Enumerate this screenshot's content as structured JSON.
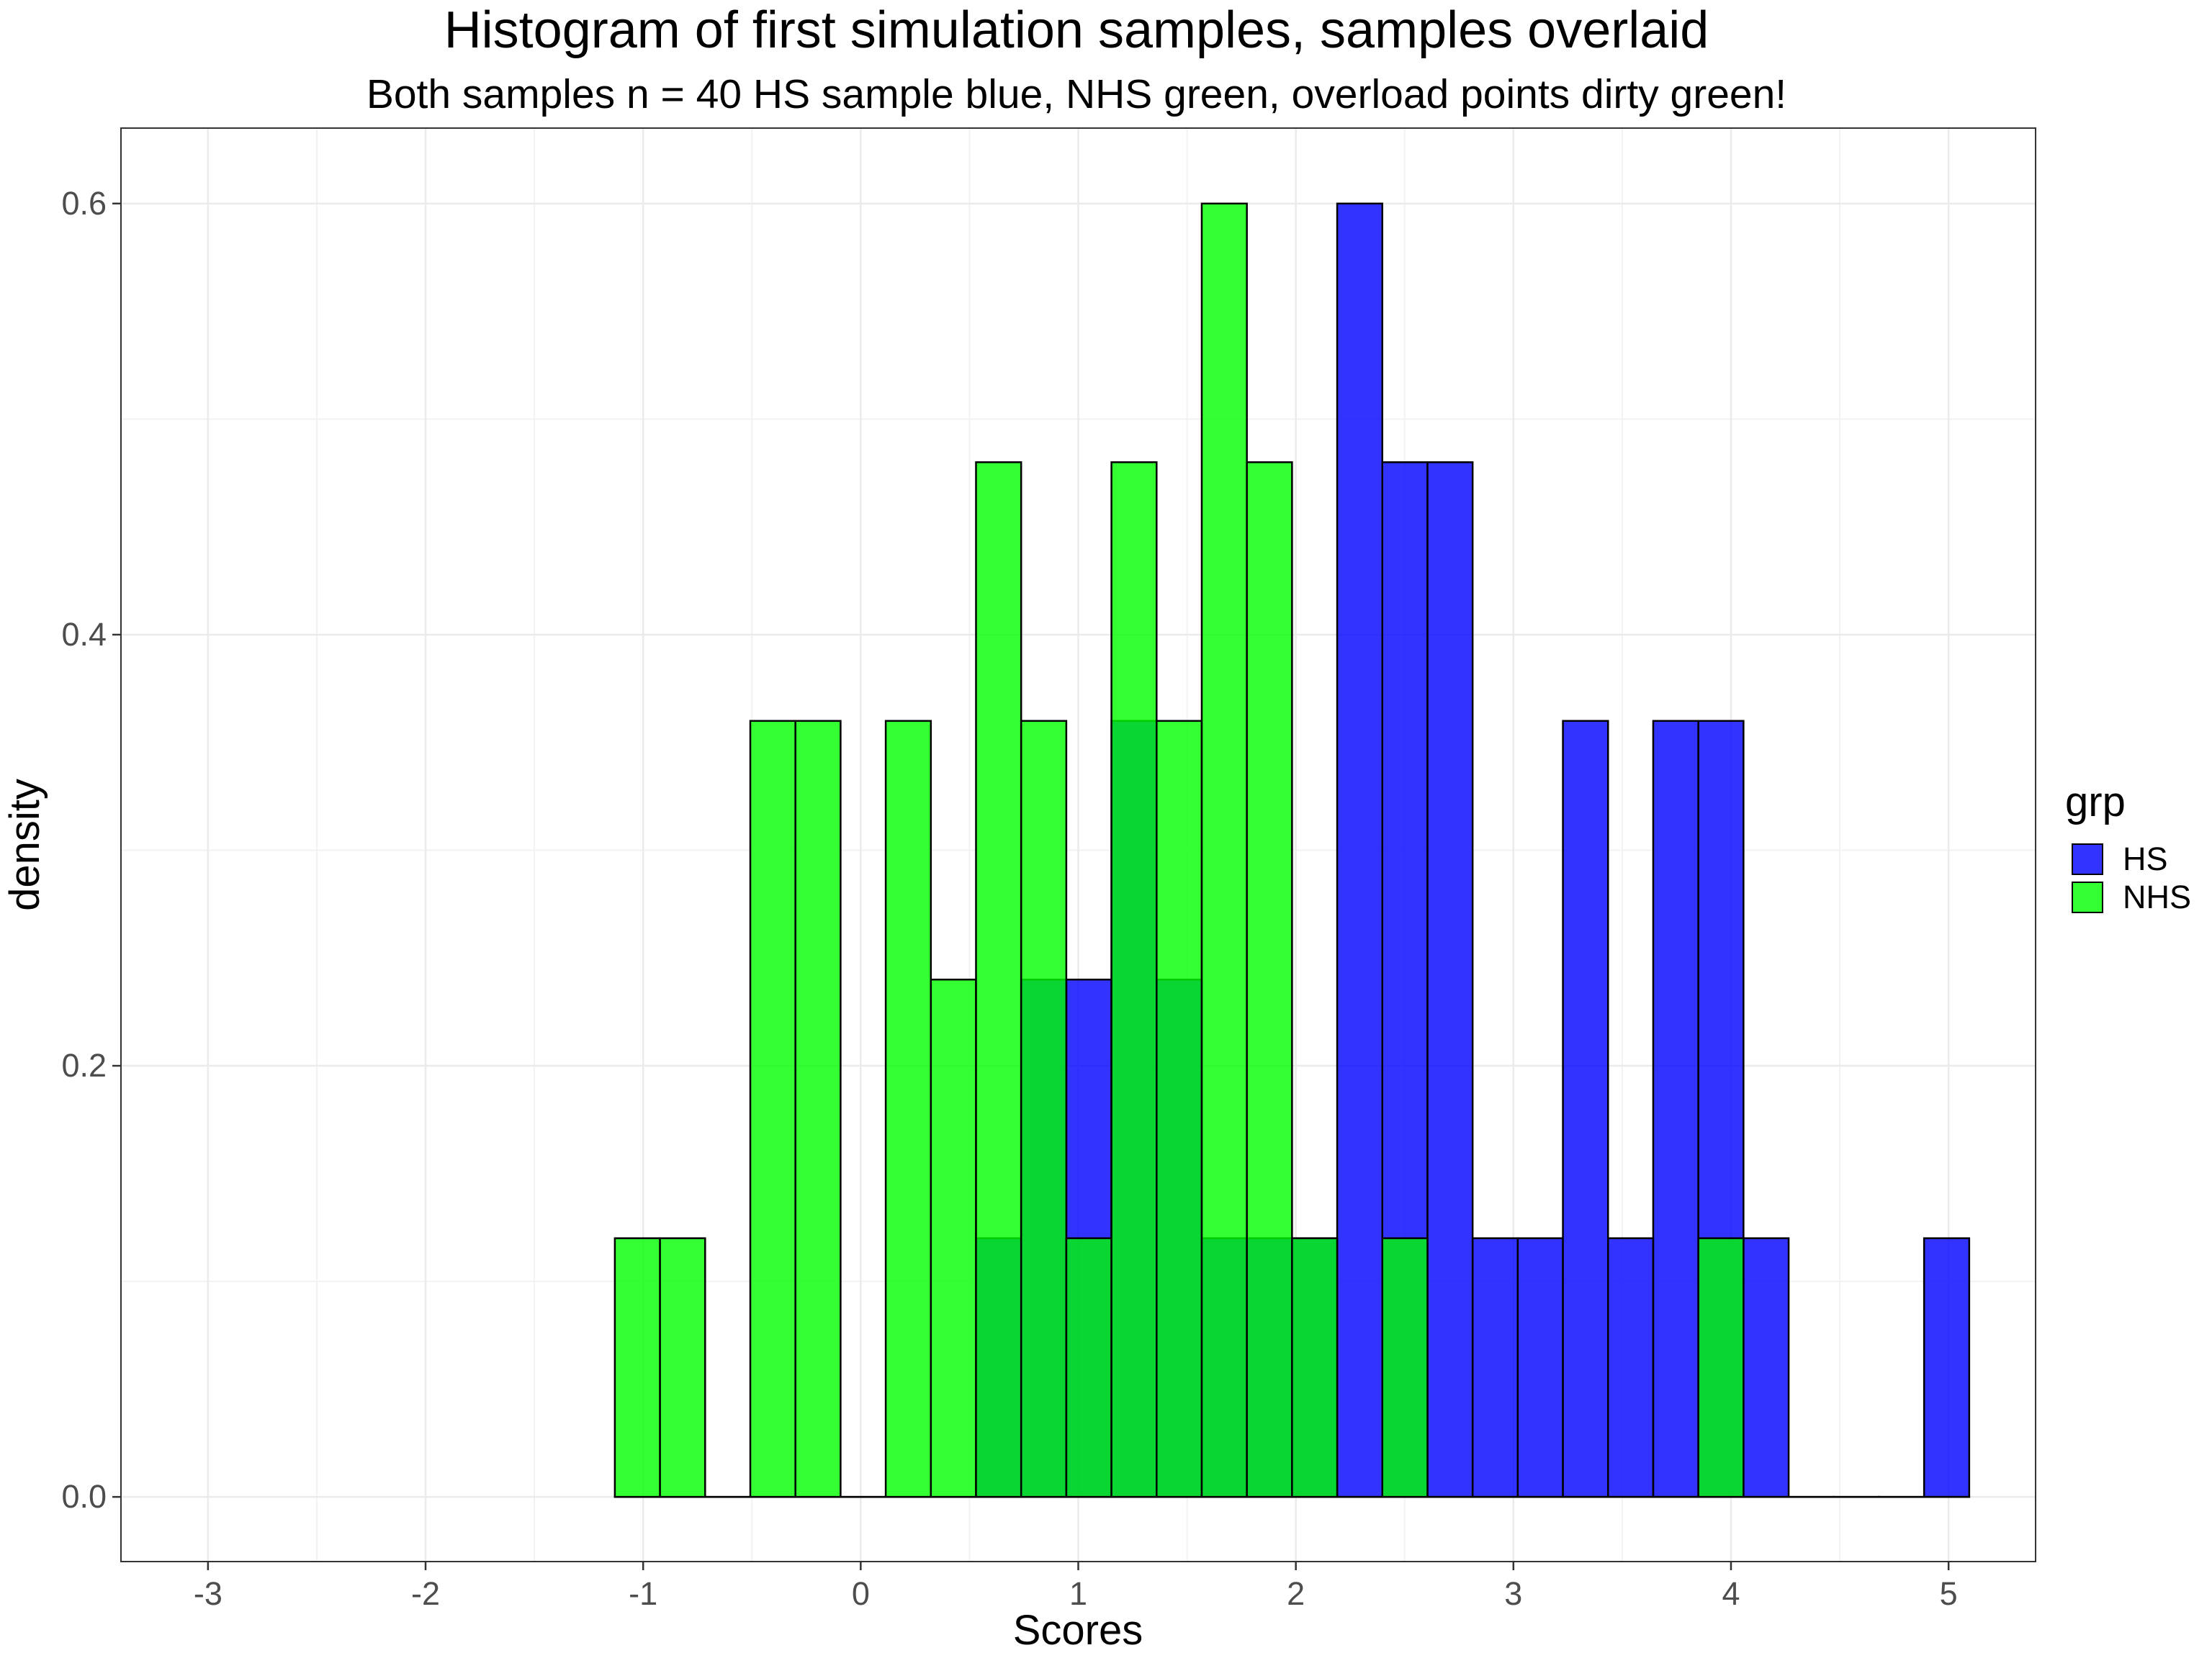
{
  "chart_data": {
    "type": "bar",
    "title": "Histogram of first simulation samples, samples overlaid",
    "subtitle": "Both samples n = 40 HS sample blue, NHS green, overload points dirty green!",
    "xlabel": "Scores",
    "ylabel": "density",
    "xlim": [
      -3.4,
      5.4
    ],
    "ylim": [
      -0.03,
      0.635
    ],
    "x_ticks": [
      -3,
      -2,
      -1,
      0,
      1,
      2,
      3,
      4,
      5
    ],
    "x_tick_labels": [
      "-3",
      "-2",
      "-1",
      "0",
      "1",
      "2",
      "3",
      "4",
      "5"
    ],
    "y_ticks": [
      0.0,
      0.2,
      0.4,
      0.6
    ],
    "y_tick_labels": [
      "0.0",
      "0.2",
      "0.4",
      "0.6"
    ],
    "grid": true,
    "bins_start": -1.13,
    "bin_width": 0.2075,
    "bin_centers": [
      -1.03,
      -0.82,
      -0.61,
      -0.41,
      -0.2,
      0.01,
      0.22,
      0.42,
      0.63,
      0.84,
      1.05,
      1.25,
      1.46,
      1.67,
      1.88,
      2.09,
      2.29,
      2.5,
      2.71,
      2.92,
      3.12,
      3.33,
      3.54,
      3.75,
      3.96,
      4.16,
      4.37,
      4.58,
      4.79,
      5.0
    ],
    "series": [
      {
        "name": "HS",
        "color": "#0000ff",
        "values": [
          0,
          0,
          0,
          0,
          0,
          0,
          0,
          0,
          0.12,
          0.24,
          0.24,
          0.36,
          0.24,
          0.12,
          0.12,
          0.12,
          0.6,
          0.48,
          0.48,
          0.12,
          0.12,
          0.36,
          0.12,
          0.36,
          0.36,
          0.12,
          0,
          0,
          0,
          0.12
        ]
      },
      {
        "name": "NHS",
        "color": "#00ff00",
        "values": [
          0.12,
          0.12,
          0,
          0.36,
          0.36,
          0,
          0.36,
          0.24,
          0.48,
          0.36,
          0.12,
          0.48,
          0.36,
          0.6,
          0.48,
          0.12,
          0,
          0.12,
          0,
          0,
          0,
          0,
          0,
          0,
          0.12,
          0,
          0,
          0,
          0,
          0
        ]
      }
    ],
    "bar_opacity": 0.8,
    "legend": {
      "title": "grp",
      "position": "right",
      "entries": [
        "HS",
        "NHS"
      ]
    }
  }
}
